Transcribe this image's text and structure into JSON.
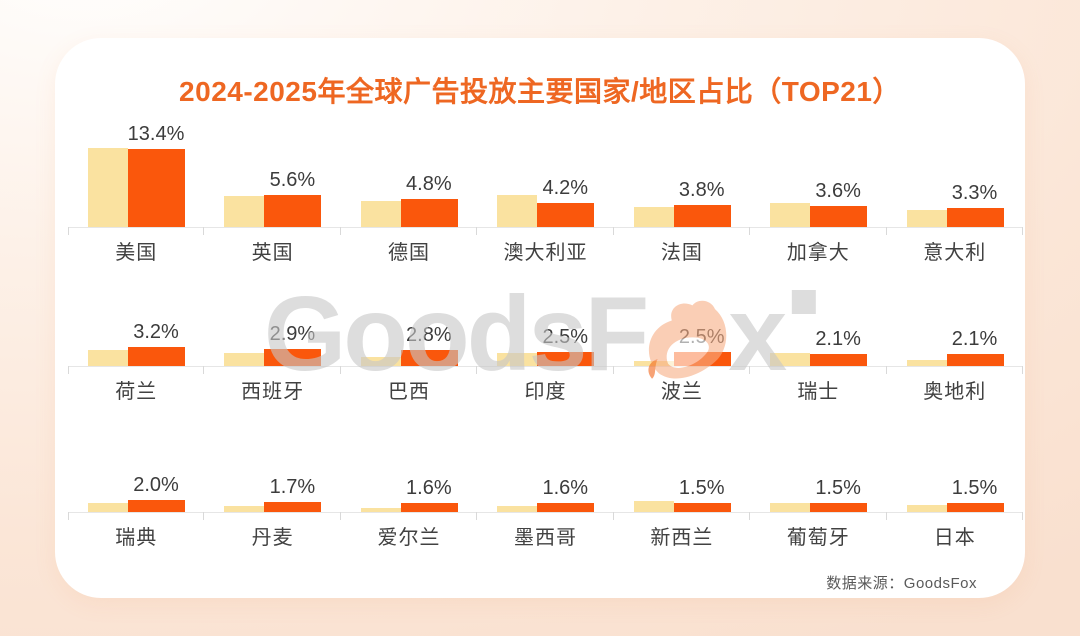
{
  "title": "2024-2025年全球广告投放主要国家/地区占比（TOP21）",
  "source_note": "数据来源：GoodsFox",
  "watermark": {
    "left": "GoodsF",
    "right": "x",
    "name": "GoodsFox"
  },
  "colors": {
    "bar_2024": "#FAE2A0",
    "bar_2025": "#FA570C",
    "title": "#EE6722",
    "axis_line": "#E6E6E6",
    "value_text": "#3C3C3C",
    "country_text": "#414141",
    "watermark_gray": "#C7C7C7",
    "card_bg": "#FFFFFF"
  },
  "chart_data": {
    "type": "bar",
    "title": "2024-2025年全球广告投放主要国家/地区占比（TOP21）",
    "unit": "percent",
    "grid": "3 rows × 7 columns, two bars per country",
    "legend_visible": false,
    "series": [
      {
        "name": "2024",
        "color": "#FAE2A0",
        "note": "unlabeled; values estimated from bar heights"
      },
      {
        "name": "2025",
        "color": "#FA570C",
        "note": "labeled values shown above orange bars"
      }
    ],
    "countries": [
      {
        "label": "美国",
        "pct_2025": 13.4,
        "pct_label": "13.4%",
        "pct_2024_est": 13.7
      },
      {
        "label": "英国",
        "pct_2025": 5.6,
        "pct_label": "5.6%",
        "pct_2024_est": 5.3
      },
      {
        "label": "德国",
        "pct_2025": 4.8,
        "pct_label": "4.8%",
        "pct_2024_est": 4.5
      },
      {
        "label": "澳大利亚",
        "pct_2025": 4.2,
        "pct_label": "4.2%",
        "pct_2024_est": 5.5
      },
      {
        "label": "法国",
        "pct_2025": 3.8,
        "pct_label": "3.8%",
        "pct_2024_est": 3.5
      },
      {
        "label": "加拿大",
        "pct_2025": 3.6,
        "pct_label": "3.6%",
        "pct_2024_est": 4.2
      },
      {
        "label": "意大利",
        "pct_2025": 3.3,
        "pct_label": "3.3%",
        "pct_2024_est": 3.0
      },
      {
        "label": "荷兰",
        "pct_2025": 3.2,
        "pct_label": "3.2%",
        "pct_2024_est": 2.7
      },
      {
        "label": "西班牙",
        "pct_2025": 2.9,
        "pct_label": "2.9%",
        "pct_2024_est": 2.3
      },
      {
        "label": "巴西",
        "pct_2025": 2.8,
        "pct_label": "2.8%",
        "pct_2024_est": 1.5
      },
      {
        "label": "印度",
        "pct_2025": 2.5,
        "pct_label": "2.5%",
        "pct_2024_est": 2.2
      },
      {
        "label": "波兰",
        "pct_2025": 2.5,
        "pct_label": "2.5%",
        "pct_2024_est": 0.9
      },
      {
        "label": "瑞士",
        "pct_2025": 2.1,
        "pct_label": "2.1%",
        "pct_2024_est": 2.2
      },
      {
        "label": "奥地利",
        "pct_2025": 2.1,
        "pct_label": "2.1%",
        "pct_2024_est": 1.0
      },
      {
        "label": "瑞典",
        "pct_2025": 2.0,
        "pct_label": "2.0%",
        "pct_2024_est": 1.6
      },
      {
        "label": "丹麦",
        "pct_2025": 1.7,
        "pct_label": "1.7%",
        "pct_2024_est": 1.0
      },
      {
        "label": "爱尔兰",
        "pct_2025": 1.6,
        "pct_label": "1.6%",
        "pct_2024_est": 0.7
      },
      {
        "label": "墨西哥",
        "pct_2025": 1.6,
        "pct_label": "1.6%",
        "pct_2024_est": 1.0
      },
      {
        "label": "新西兰",
        "pct_2025": 1.5,
        "pct_label": "1.5%",
        "pct_2024_est": 1.9
      },
      {
        "label": "葡萄牙",
        "pct_2025": 1.5,
        "pct_label": "1.5%",
        "pct_2024_est": 1.6
      },
      {
        "label": "日本",
        "pct_2025": 1.5,
        "pct_label": "1.5%",
        "pct_2024_est": 1.2
      }
    ]
  }
}
